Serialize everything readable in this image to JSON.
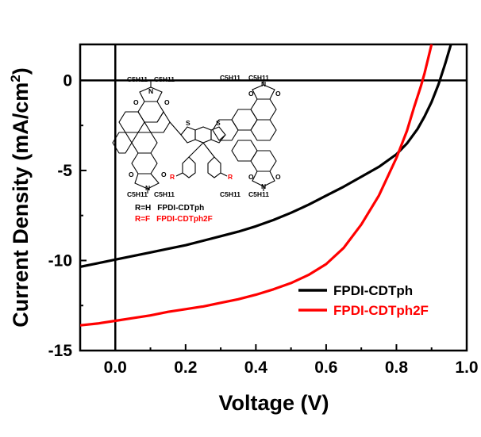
{
  "chart_data": {
    "type": "line",
    "xlabel": "Voltage (V)",
    "ylabel_main": "Current Density (mA/cm",
    "ylabel_sup": "2",
    "ylabel_tail": ")",
    "xlim": [
      -0.1,
      1.0
    ],
    "ylim": [
      -15,
      2
    ],
    "x_ticks": [
      0.0,
      0.2,
      0.4,
      0.6,
      0.8,
      1.0
    ],
    "x_tick_labels": [
      "0.0",
      "0.2",
      "0.4",
      "0.6",
      "0.8",
      "1.0"
    ],
    "y_ticks": [
      -15,
      -10,
      -5,
      0
    ],
    "y_tick_labels": [
      "-15",
      "-10",
      "-5",
      "0"
    ],
    "grid": false,
    "reference_lines": {
      "x": 0,
      "y": 0
    },
    "legend_position": "bottom-right",
    "series": [
      {
        "name": "FPDI-CDTph",
        "color": "#000000",
        "x": [
          -0.1,
          -0.05,
          0.0,
          0.05,
          0.1,
          0.15,
          0.2,
          0.25,
          0.3,
          0.35,
          0.4,
          0.45,
          0.5,
          0.55,
          0.6,
          0.65,
          0.7,
          0.75,
          0.8,
          0.83,
          0.86,
          0.88,
          0.9,
          0.92,
          0.94,
          0.955
        ],
        "y": [
          -10.35,
          -10.15,
          -9.95,
          -9.75,
          -9.55,
          -9.35,
          -9.15,
          -8.9,
          -8.65,
          -8.4,
          -8.1,
          -7.75,
          -7.35,
          -6.9,
          -6.4,
          -5.9,
          -5.35,
          -4.8,
          -4.1,
          -3.5,
          -2.7,
          -2.0,
          -1.2,
          -0.2,
          1.0,
          2.0
        ]
      },
      {
        "name": "FPDI-CDTph2F",
        "color": "#ff0000",
        "x": [
          -0.1,
          -0.05,
          0.0,
          0.05,
          0.1,
          0.15,
          0.2,
          0.25,
          0.3,
          0.35,
          0.4,
          0.45,
          0.5,
          0.55,
          0.6,
          0.65,
          0.7,
          0.75,
          0.8,
          0.83,
          0.85,
          0.87,
          0.88,
          0.89,
          0.9
        ],
        "y": [
          -13.6,
          -13.5,
          -13.35,
          -13.2,
          -13.05,
          -12.85,
          -12.7,
          -12.55,
          -12.35,
          -12.15,
          -11.9,
          -11.6,
          -11.25,
          -10.8,
          -10.2,
          -9.3,
          -8.0,
          -6.4,
          -4.3,
          -2.8,
          -1.5,
          -0.3,
          0.4,
          1.2,
          2.0
        ]
      }
    ]
  },
  "molecule": {
    "chain_label": "C5H11",
    "atoms": {
      "oxygen": "O",
      "nitrogen": "N",
      "sulfur": "S",
      "r_group": "R"
    },
    "entries": [
      {
        "prefix": "R=H",
        "name": "FPDI-CDTph",
        "color": "#000000"
      },
      {
        "prefix": "R=F",
        "name": "FPDI-CDTph2F",
        "color": "#ff0000"
      }
    ]
  }
}
